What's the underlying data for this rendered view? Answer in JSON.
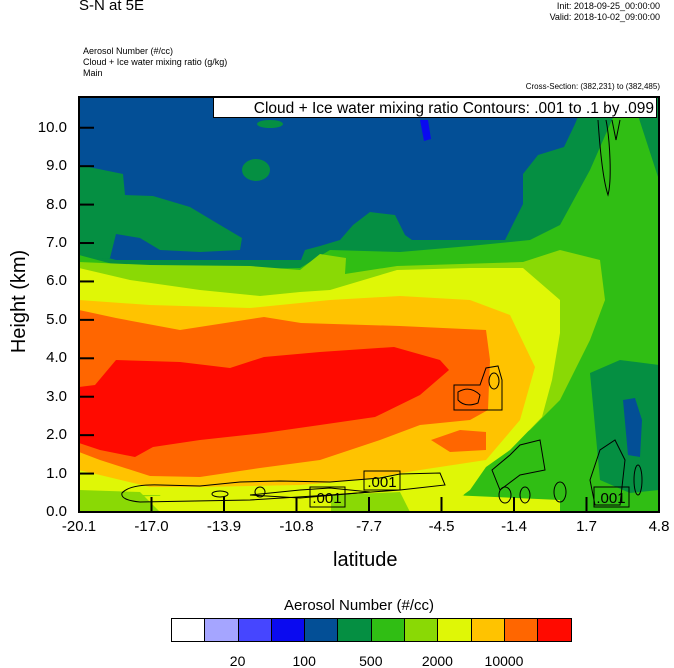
{
  "header": {
    "title": "S-N at 5E",
    "init": "Init: 2018-09-25_00:00:00",
    "valid": "Valid: 2018-10-02_09:00:00",
    "subtitles": [
      "Aerosol Number   (#/cc)",
      "Cloud + Ice water mixing ratio   (g/kg)",
      "Main"
    ],
    "cross_section": "Cross-Section: (382,231) to (382,485)"
  },
  "chart_data": {
    "type": "heatmap",
    "subtype": "filled contour cross-section with line contour overlay",
    "xlabel": "latitude",
    "ylabel": "Height (km)",
    "x_ticks": [
      "-20.1",
      "-17.0",
      "-13.9",
      "-10.8",
      "-7.7",
      "-4.5",
      "-1.4",
      "1.7",
      "4.8"
    ],
    "xlim": [
      -20.1,
      4.8
    ],
    "y_ticks": [
      "0.0",
      "1.0",
      "2.0",
      "3.0",
      "4.0",
      "5.0",
      "6.0",
      "7.0",
      "8.0",
      "9.0",
      "10.0"
    ],
    "ylim": [
      0,
      10.8
    ],
    "overlay_info": "Cloud + Ice water mixing ratio Contours: .001 to .1 by .099",
    "contour_labels": [
      ".001",
      ".001",
      ".001"
    ],
    "colorbar": {
      "title": "Aerosol Number  (#/cc)",
      "colors": [
        "#FFFFFF",
        "#A5A5FF",
        "#4646FF",
        "#0A0AF0",
        "#034F96",
        "#058F42",
        "#30BE14",
        "#8AD905",
        "#DFF706",
        "#FFC300",
        "#FF6600",
        "#FF0A00"
      ],
      "labels": [
        "20",
        "100",
        "500",
        "2000",
        "10000"
      ]
    }
  }
}
